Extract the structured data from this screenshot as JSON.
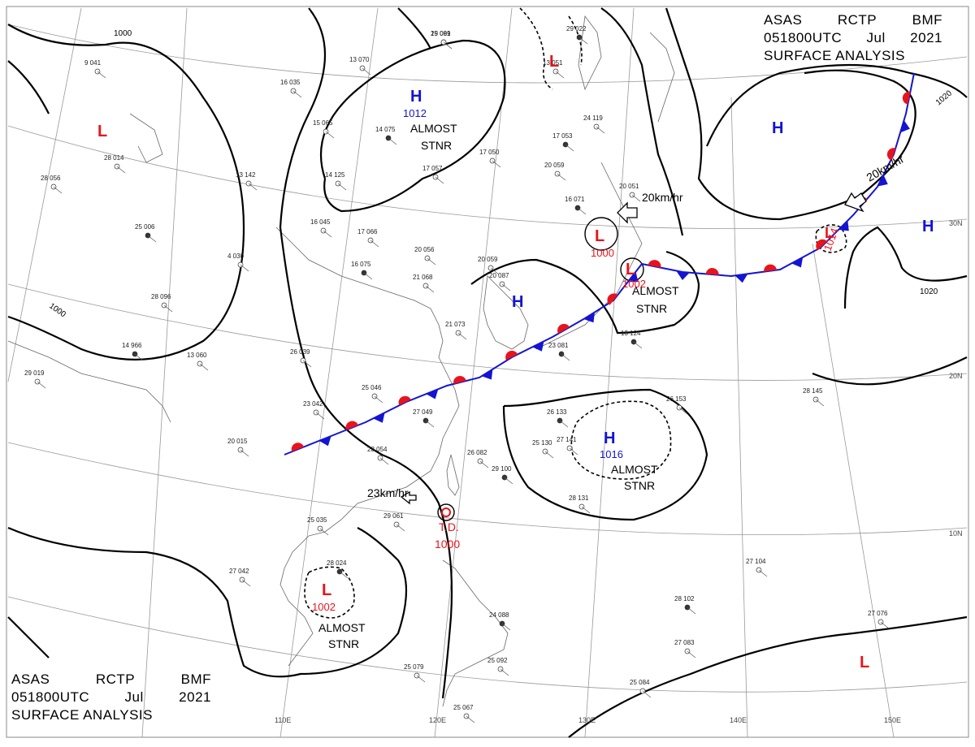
{
  "header": {
    "line1": [
      "ASAS",
      "RCTP",
      "BMF"
    ],
    "line2": [
      "051800UTC",
      "Jul",
      "2021"
    ],
    "line3": "SURFACE ANALYSIS"
  },
  "colors": {
    "low": "#e8141b",
    "high": "#1414d2",
    "cold_front": "#1414d2",
    "warm_front": "#e8141b"
  },
  "pressure_systems": [
    {
      "type": "L",
      "pressure": "",
      "label": ""
    },
    {
      "type": "H",
      "pressure": "1012",
      "label": "ALMOST STNR"
    },
    {
      "type": "L",
      "pressure": "",
      "label": ""
    },
    {
      "type": "H",
      "pressure": "",
      "label": ""
    },
    {
      "type": "L",
      "pressure": "1000",
      "label": ""
    },
    {
      "type": "L",
      "pressure": "1002",
      "label": "ALMOST STNR"
    },
    {
      "type": "H",
      "pressure": "",
      "label": ""
    },
    {
      "type": "L",
      "pressure": "1014",
      "label": ""
    },
    {
      "type": "H",
      "pressure": "",
      "label": ""
    },
    {
      "type": "H",
      "pressure": "1016",
      "label": "ALMOST STNR"
    },
    {
      "type": "L",
      "pressure": "1002",
      "label": "ALMOST STNR"
    },
    {
      "type": "L",
      "pressure": "",
      "label": ""
    }
  ],
  "tropical_depression": {
    "label": "T.D.",
    "pressure": "1000"
  },
  "movements": [
    "20km/hr",
    "20km/hr",
    "23km/hr"
  ],
  "isobar_labels": [
    "1000",
    "1000",
    "1020",
    "1020"
  ],
  "latitude_labels": [
    "30N",
    "20N",
    "10N"
  ],
  "longitude_labels": [
    "110E",
    "120E",
    "130E",
    "140E",
    "150E"
  ],
  "stations": [
    "15 061",
    "13 070",
    "16 035",
    "15 065",
    "14 075",
    "17 057",
    "17 050",
    "20 059",
    "17 053",
    "13 142",
    "14 125",
    "17 066",
    "16 075",
    "20 056",
    "21 068",
    "20 059",
    "16 071",
    "20 051",
    "21 073",
    "20 087",
    "23 081",
    "26 039",
    "25 046",
    "23 042",
    "27 049",
    "28 054",
    "20 015",
    "26 082",
    "29 100",
    "25 130",
    "27 141",
    "28 131",
    "26 133",
    "28 145",
    "26 153",
    "29 019",
    "14 966",
    "13 060",
    "28 014",
    "27 042",
    "28 024",
    "29 061",
    "25 035",
    "27 104",
    "28 102",
    "27 083",
    "25 084",
    "27 076",
    "24 088",
    "25 092",
    "25 079",
    "25 067",
    "29 022",
    "13 051",
    "9 041",
    "28 056",
    "25 006",
    "28 096",
    "4 030",
    "16 045",
    "13 124",
    "24 119",
    "29 099"
  ]
}
